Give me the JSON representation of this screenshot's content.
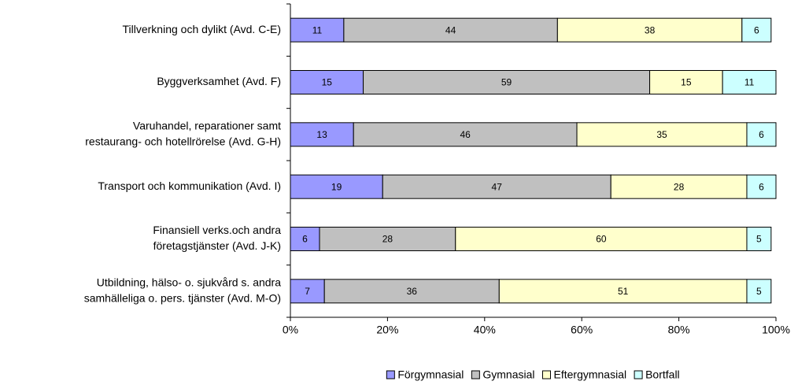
{
  "chart_data": {
    "type": "stacked_bar_horizontal",
    "categories": [
      [
        "Tillverkning och dylikt (Avd. C-E)"
      ],
      [
        "Byggverksamhet (Avd. F)"
      ],
      [
        "Varuhandel, reparationer samt",
        "restaurang- och hotellrörelse (Avd. G-H)"
      ],
      [
        "Transport och kommunikation (Avd. I)"
      ],
      [
        "Finansiell verks.och andra",
        "företagstjänster (Avd. J-K)"
      ],
      [
        "Utbildning, hälso- o. sjukvård s. andra",
        "samhälleliga o. pers. tjänster (Avd. M-O)"
      ]
    ],
    "series": [
      {
        "name": "Förgymnasial",
        "color": "#9999ff",
        "values": [
          11,
          15,
          13,
          19,
          6,
          7
        ]
      },
      {
        "name": "Gymnasial",
        "color": "#c0c0c0",
        "values": [
          44,
          59,
          46,
          47,
          28,
          36
        ]
      },
      {
        "name": "Eftergymnasial",
        "color": "#ffffcc",
        "values": [
          38,
          15,
          35,
          28,
          60,
          51
        ]
      },
      {
        "name": "Bortfall",
        "color": "#ccffff",
        "values": [
          6,
          11,
          6,
          6,
          5,
          5
        ]
      }
    ],
    "xlim": [
      0,
      100
    ],
    "xticks": [
      {
        "value": 0,
        "label": "0%"
      },
      {
        "value": 20,
        "label": "20%"
      },
      {
        "value": 40,
        "label": "40%"
      },
      {
        "value": 60,
        "label": "60%"
      },
      {
        "value": 80,
        "label": "80%"
      },
      {
        "value": 100,
        "label": "100%"
      }
    ],
    "legend": "bottom"
  }
}
